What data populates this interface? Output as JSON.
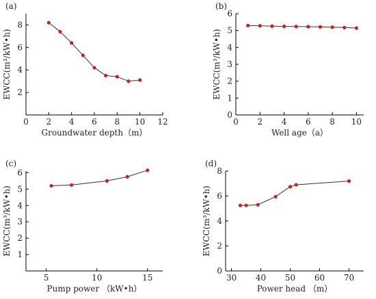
{
  "chart_data": [
    {
      "type": "line",
      "panel_label": "(a)",
      "xlabel": "Groundwater depth（m）",
      "ylabel": "EWCC(m³/kW•h)",
      "xlim": [
        0,
        12
      ],
      "ylim": [
        0,
        9
      ],
      "xticks": [
        0,
        2,
        4,
        6,
        8,
        10,
        12
      ],
      "yticks": [
        2,
        4,
        6,
        8
      ],
      "grid": false,
      "x": [
        2,
        3,
        4,
        5,
        6,
        7,
        8,
        9,
        10
      ],
      "y": [
        8.2,
        7.4,
        6.4,
        5.3,
        4.2,
        3.5,
        3.4,
        3.0,
        3.1
      ]
    },
    {
      "type": "line",
      "panel_label": "(b)",
      "xlabel": "Well age（a）",
      "ylabel": "EWCC(m³/kW•h)",
      "xlim": [
        0,
        10.6
      ],
      "ylim": [
        0,
        6
      ],
      "xticks": [
        0,
        2,
        4,
        6,
        8,
        10
      ],
      "yticks": [
        0,
        1,
        2,
        3,
        4,
        5,
        6
      ],
      "grid": false,
      "x": [
        1,
        2,
        3,
        4,
        5,
        6,
        7,
        8,
        9,
        10
      ],
      "y": [
        5.3,
        5.28,
        5.26,
        5.25,
        5.24,
        5.23,
        5.22,
        5.2,
        5.18,
        5.15
      ]
    },
    {
      "type": "line",
      "panel_label": "(c)",
      "xlabel": "Pump power （kW•h）",
      "ylabel": "EWCC(m³/kW•h)",
      "xlim": [
        3,
        16.5
      ],
      "ylim": [
        0,
        6.1
      ],
      "xticks": [
        5,
        10,
        15
      ],
      "yticks": [
        1,
        2,
        3,
        4,
        5,
        6
      ],
      "grid": false,
      "x": [
        5.5,
        7.5,
        11,
        13,
        15
      ],
      "y": [
        5.2,
        5.25,
        5.5,
        5.75,
        6.15
      ]
    },
    {
      "type": "line",
      "panel_label": "(d)",
      "xlabel": "Power head （m）",
      "ylabel": "EWCC(m³/kW•h)",
      "xlim": [
        28,
        75
      ],
      "ylim": [
        0,
        8
      ],
      "xticks": [
        30,
        40,
        50,
        60,
        70
      ],
      "yticks": [
        0,
        2,
        4,
        6,
        8
      ],
      "grid": false,
      "x": [
        33,
        35,
        39,
        45,
        50,
        52,
        70
      ],
      "y": [
        5.25,
        5.25,
        5.3,
        5.95,
        6.75,
        6.9,
        7.2
      ]
    }
  ]
}
